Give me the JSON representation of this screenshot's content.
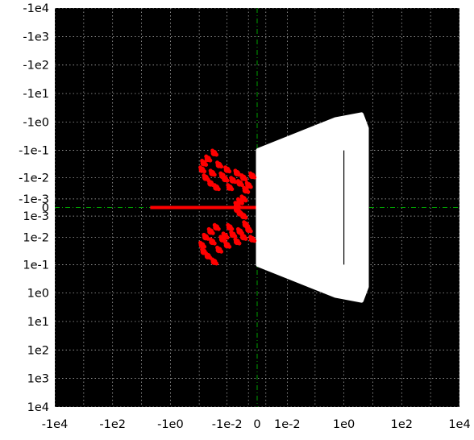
{
  "chart_data": {
    "type": "scatter",
    "title": "",
    "xlabel": "",
    "ylabel": "",
    "x_scale": "symlog",
    "y_scale": "symlog",
    "y_inverted": true,
    "xlim": [
      -10000,
      10000
    ],
    "ylim": [
      -10000,
      10000
    ],
    "grid": true,
    "background": "#000000",
    "colors": {
      "plot_bg": "#000000",
      "grid": "#ffffff",
      "zero_axis": "#00a000",
      "region": "#ffffff",
      "points": "#ff0000",
      "segment": "#000000"
    },
    "x_ticks": [
      {
        "value": -10000,
        "label": "-1e4"
      },
      {
        "value": -100,
        "label": "-1e2"
      },
      {
        "value": -1,
        "label": "-1e0"
      },
      {
        "value": -0.01,
        "label": "-1e-2"
      },
      {
        "value": 0,
        "label": "0"
      },
      {
        "value": 0.01,
        "label": "1e-2"
      },
      {
        "value": 1,
        "label": "1e0"
      },
      {
        "value": 100,
        "label": "1e2"
      },
      {
        "value": 10000,
        "label": "1e4"
      }
    ],
    "y_ticks": [
      {
        "value": -10000,
        "label": "-1e4"
      },
      {
        "value": -1000,
        "label": "-1e3"
      },
      {
        "value": -100,
        "label": "-1e2"
      },
      {
        "value": -10,
        "label": "-1e1"
      },
      {
        "value": -1,
        "label": "-1e0"
      },
      {
        "value": -0.1,
        "label": "-1e-1"
      },
      {
        "value": -0.01,
        "label": "-1e-2"
      },
      {
        "value": -0.001,
        "label": "-1e-3"
      },
      {
        "value": 0,
        "label": "0"
      },
      {
        "value": 0.001,
        "label": "1e-3"
      },
      {
        "value": 0.01,
        "label": "1e-2"
      },
      {
        "value": 0.1,
        "label": "1e-1"
      },
      {
        "value": 1,
        "label": "1e0"
      },
      {
        "value": 10,
        "label": "1e1"
      },
      {
        "value": 100,
        "label": "1e2"
      },
      {
        "value": 1000,
        "label": "1e3"
      },
      {
        "value": 10000,
        "label": "1e4"
      }
    ],
    "region": {
      "name": "white region",
      "polygon": [
        [
          0.0001,
          -0.1
        ],
        [
          0.5,
          -1.2
        ],
        [
          4,
          -1.8
        ],
        [
          6,
          -0.6
        ],
        [
          6,
          0.6
        ],
        [
          4,
          1.8
        ],
        [
          0.5,
          1.2
        ],
        [
          0.0001,
          0.1
        ]
      ]
    },
    "segment": {
      "x": 1,
      "y": [
        -0.1,
        0.1
      ]
    },
    "series": [
      {
        "name": "axis-line",
        "x": [
          -5,
          -0.0001
        ],
        "y": [
          0,
          0
        ]
      },
      {
        "name": "upper-cluster",
        "x": [
          -0.05,
          -0.08,
          -0.03,
          -0.02,
          -0.015,
          -0.01,
          -0.006,
          -0.004,
          -0.002,
          -0.001,
          -0.0005,
          -0.06,
          -0.04,
          -0.025,
          -0.012,
          -0.008,
          -0.003,
          -0.0015,
          -0.07,
          -0.035
        ],
        "y": [
          -0.05,
          -0.02,
          -0.08,
          -0.03,
          -0.012,
          -0.02,
          -0.008,
          -0.015,
          -0.01,
          -0.005,
          -0.012,
          -0.01,
          -0.006,
          -0.004,
          -0.009,
          -0.004,
          -0.006,
          -0.003,
          -0.035,
          -0.015
        ]
      },
      {
        "name": "lower-cluster",
        "x": [
          -0.05,
          -0.08,
          -0.03,
          -0.02,
          -0.015,
          -0.01,
          -0.006,
          -0.004,
          -0.002,
          -0.001,
          -0.0005,
          -0.06,
          -0.04,
          -0.025,
          -0.012,
          -0.008,
          -0.003,
          -0.0015,
          -0.07,
          -0.035
        ],
        "y": [
          0.05,
          0.02,
          0.08,
          0.03,
          0.012,
          0.02,
          0.008,
          0.015,
          0.01,
          0.005,
          0.012,
          0.01,
          0.006,
          0.004,
          0.009,
          0.004,
          0.006,
          0.003,
          0.035,
          0.015
        ]
      },
      {
        "name": "arc",
        "x": [
          -0.002,
          -0.003,
          -0.004,
          -0.004,
          -0.003,
          -0.002
        ],
        "y": [
          -0.001,
          -0.0006,
          -0.0002,
          0.0002,
          0.0006,
          0.001
        ]
      }
    ]
  }
}
